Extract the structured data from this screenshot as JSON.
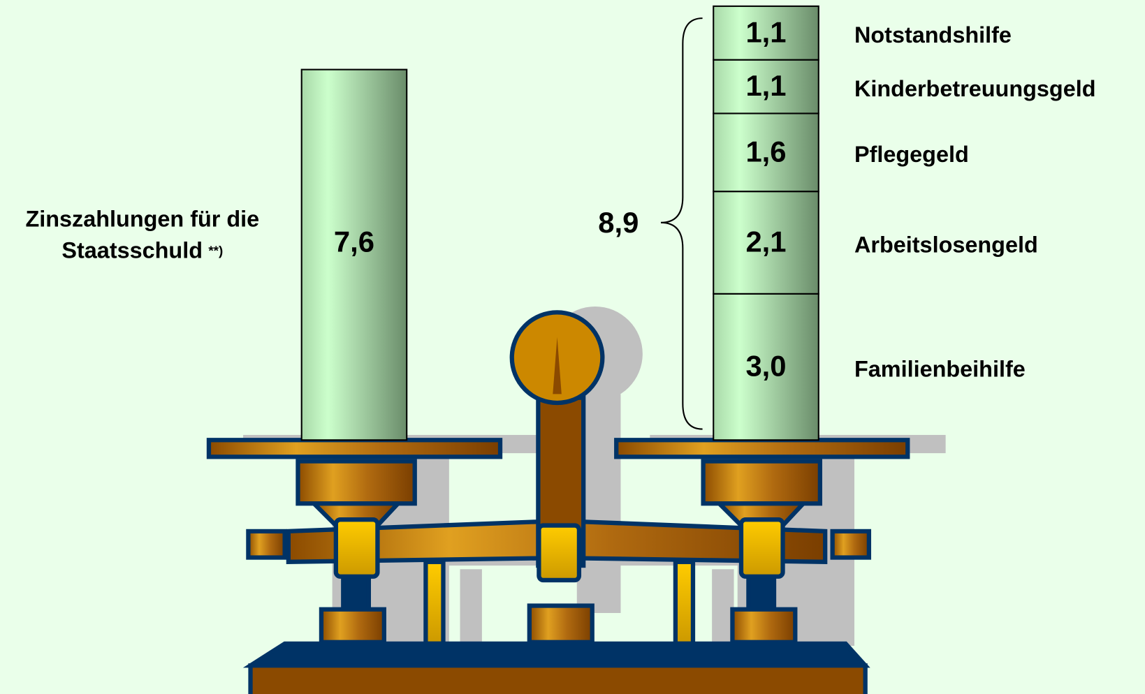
{
  "chart_data": {
    "type": "balance",
    "left": {
      "label_lines": [
        "Zinszahlungen für die",
        "Staatsschuld"
      ],
      "footnote": "**)",
      "value": 7.6,
      "value_label": "7,6"
    },
    "right": {
      "total": 8.9,
      "total_label": "8,9",
      "segments": [
        {
          "name": "Familienbeihilfe",
          "value": 3.0,
          "value_label": "3,0"
        },
        {
          "name": "Arbeitslosengeld",
          "value": 2.1,
          "value_label": "2,1"
        },
        {
          "name": "Pflegegeld",
          "value": 1.6,
          "value_label": "1,6"
        },
        {
          "name": "Kinderbetreuungsgeld",
          "value": 1.1,
          "value_label": "1,1"
        },
        {
          "name": "Notstandshilfe",
          "value": 1.1,
          "value_label": "1,1"
        }
      ]
    }
  }
}
